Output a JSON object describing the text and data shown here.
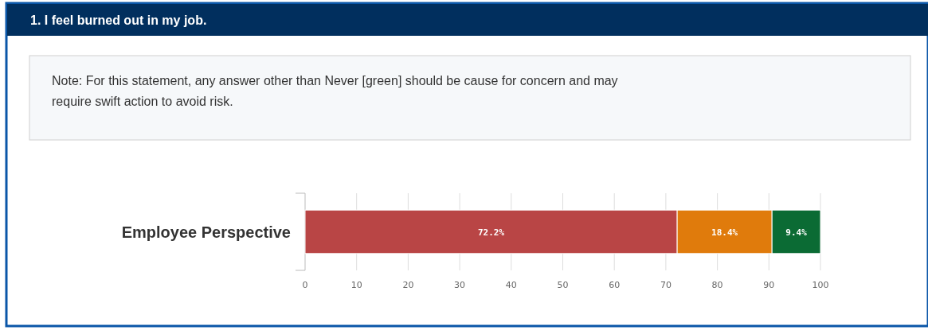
{
  "chart_data": {
    "type": "bar",
    "orientation": "horizontal",
    "stacked": true,
    "title": "1. I feel burned out in my job.",
    "annotations": [
      "Note: For this statement, any answer other than Never [green] should be cause for concern and may require swift action to avoid risk."
    ],
    "categories": [
      "Employee Perspective"
    ],
    "series": [
      {
        "color": "#b94545",
        "values": [
          72.2
        ],
        "value_labels": [
          "72.2%"
        ]
      },
      {
        "color": "#e07b0c",
        "values": [
          18.4
        ],
        "value_labels": [
          "18.4%"
        ]
      },
      {
        "color": "#0b6b34",
        "values": [
          9.4
        ],
        "value_labels": [
          "9.4%"
        ]
      }
    ],
    "xlim": [
      0,
      100
    ],
    "xticks": [
      0,
      10,
      20,
      30,
      40,
      50,
      60,
      70,
      80,
      90,
      100
    ],
    "grid": "x"
  }
}
